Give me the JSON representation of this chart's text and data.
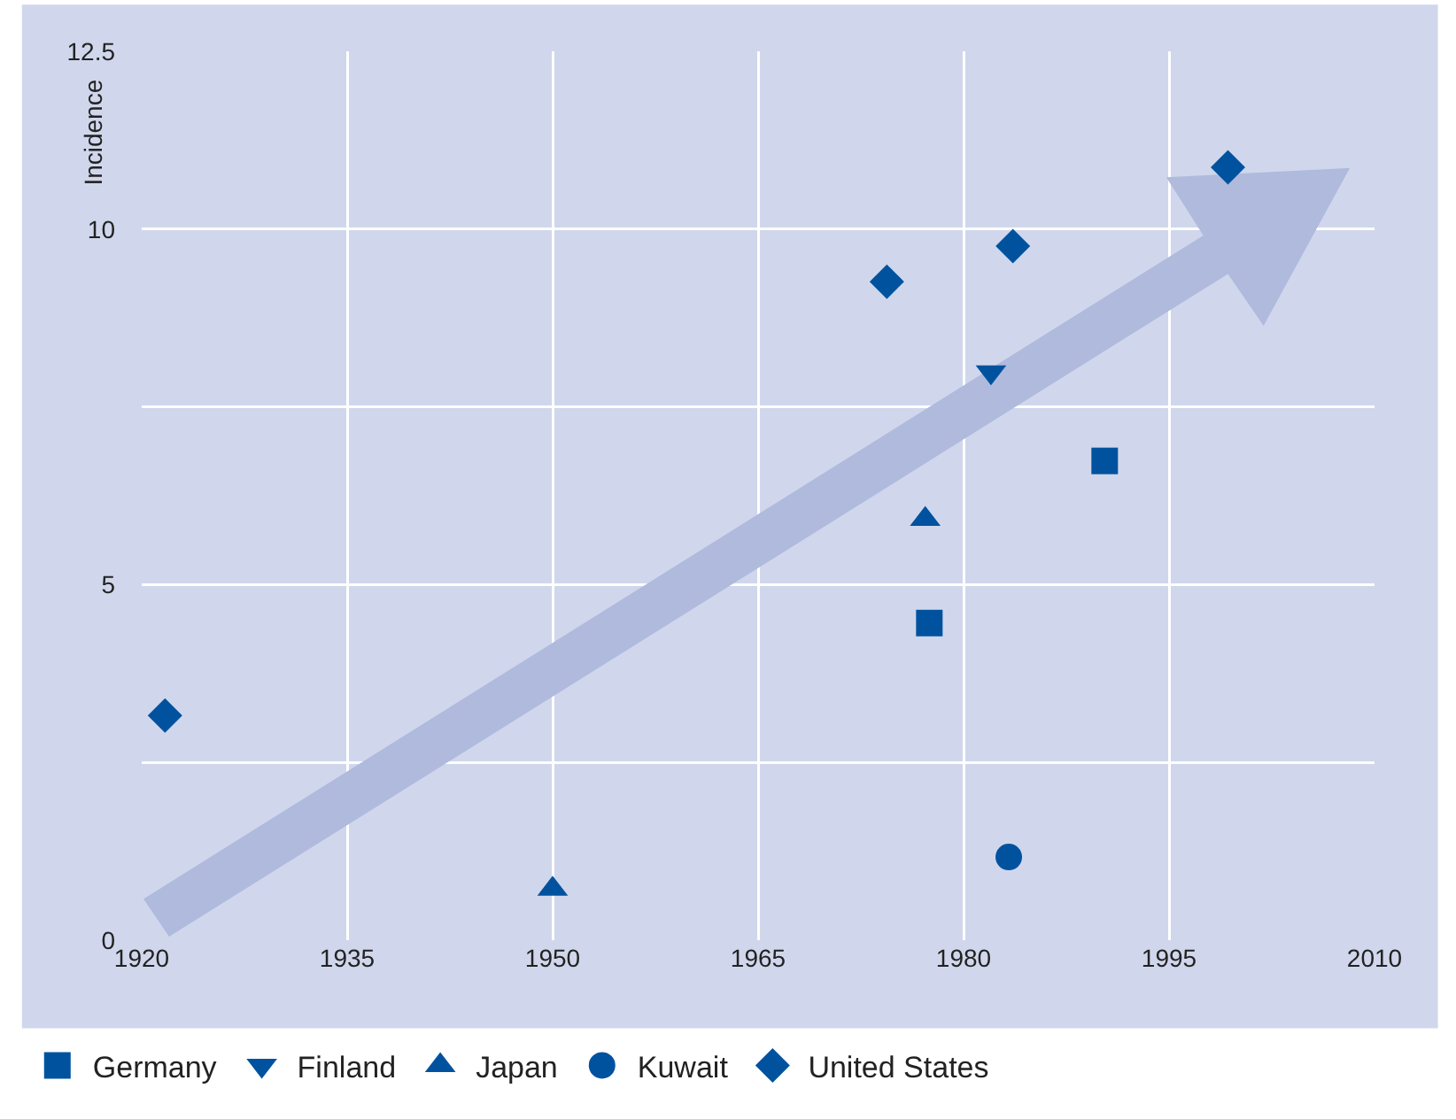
{
  "chart_data": {
    "type": "scatter",
    "ylabel": "Incidence",
    "xlim": [
      1920,
      2010
    ],
    "xticks": [
      1920,
      1935,
      1950,
      1965,
      1980,
      1995,
      2010
    ],
    "ylim": [
      0,
      12.5
    ],
    "yticks": [
      0,
      {
        "value": 2.5,
        "label": null
      },
      5,
      {
        "value": 7.5,
        "label": null
      },
      10,
      12.5
    ],
    "grid": true,
    "legend": "bottom left",
    "series": [
      {
        "name": "Germany",
        "color": "#00529f",
        "marker": "square",
        "x": [
          1977.5,
          1990.3
        ],
        "values": [
          4.46,
          6.74
        ]
      },
      {
        "name": "Finland",
        "color": "#00529f",
        "marker": "triangle-down",
        "x": [
          1982.0
        ],
        "values": [
          7.99
        ]
      },
      {
        "name": "Japan",
        "color": "#00529f",
        "marker": "triangle",
        "x": [
          1950.0,
          1977.2
        ],
        "values": [
          0.72,
          5.92
        ]
      },
      {
        "name": "Kuwait",
        "color": "#00529f",
        "marker": "circle",
        "x": [
          1983.3
        ],
        "values": [
          1.17
        ]
      },
      {
        "name": "United States",
        "color": "#00529f",
        "marker": "diamond",
        "x": [
          1921.7,
          1974.4,
          1983.6,
          1999.3
        ],
        "values": [
          3.16,
          9.26,
          9.76,
          10.87
        ]
      }
    ]
  }
}
